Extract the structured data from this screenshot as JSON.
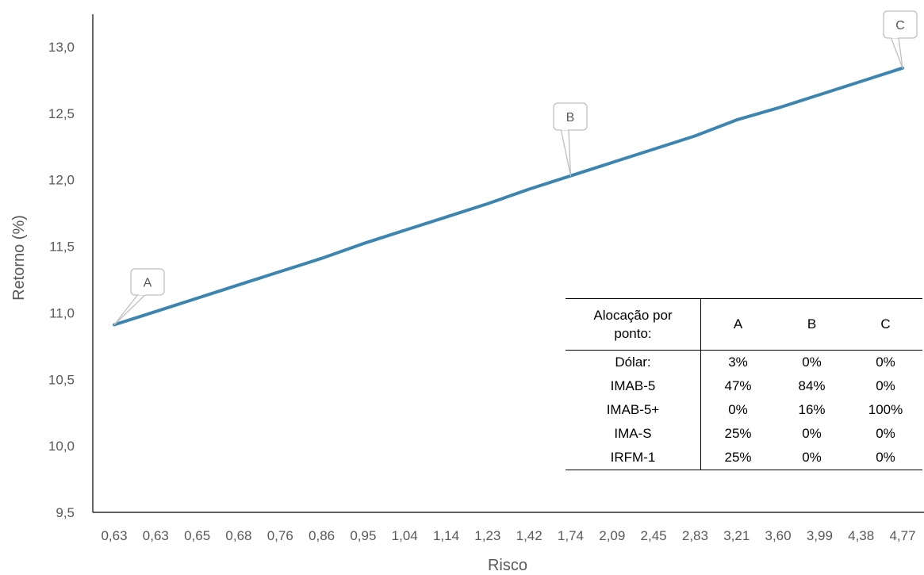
{
  "chart_data": {
    "type": "line",
    "ylabel": "Retorno (%)",
    "xlabel": "Risco",
    "ylim": [
      9.5,
      13.2
    ],
    "yticks": [
      "9,5",
      "10,0",
      "10,5",
      "11,0",
      "11,5",
      "12,0",
      "12,5",
      "13,0"
    ],
    "ytick_values": [
      9.5,
      10.0,
      10.5,
      11.0,
      11.5,
      12.0,
      12.5,
      13.0
    ],
    "categories": [
      "0,63",
      "0,63",
      "0,65",
      "0,68",
      "0,76",
      "0,86",
      "0,95",
      "1,04",
      "1,14",
      "1,23",
      "1,42",
      "1,74",
      "2,09",
      "2,45",
      "2,83",
      "3,21",
      "3,60",
      "3,99",
      "4,38",
      "4,77"
    ],
    "series": [
      {
        "color": "#3D85B1",
        "values": [
          10.91,
          11.01,
          11.11,
          11.21,
          11.31,
          11.41,
          11.52,
          11.62,
          11.72,
          11.82,
          11.93,
          12.03,
          12.13,
          12.23,
          12.33,
          12.45,
          12.54,
          12.64,
          12.74,
          12.84
        ]
      }
    ],
    "annotations": [
      {
        "label": "A",
        "index": 0
      },
      {
        "label": "B",
        "index": 11
      },
      {
        "label": "C",
        "index": 19
      }
    ],
    "grid": false
  },
  "table": {
    "corner": "Alocação por ponto:",
    "columns": [
      "A",
      "B",
      "C"
    ],
    "rows": [
      {
        "label": "Dólar:",
        "values": [
          "3%",
          "0%",
          "0%"
        ]
      },
      {
        "label": "IMAB-5",
        "values": [
          "47%",
          "84%",
          "0%"
        ]
      },
      {
        "label": "IMAB-5+",
        "values": [
          "0%",
          "16%",
          "100%"
        ]
      },
      {
        "label": "IMA-S",
        "values": [
          "25%",
          "0%",
          "0%"
        ]
      },
      {
        "label": "IRFM-1",
        "values": [
          "25%",
          "0%",
          "0%"
        ]
      }
    ]
  }
}
